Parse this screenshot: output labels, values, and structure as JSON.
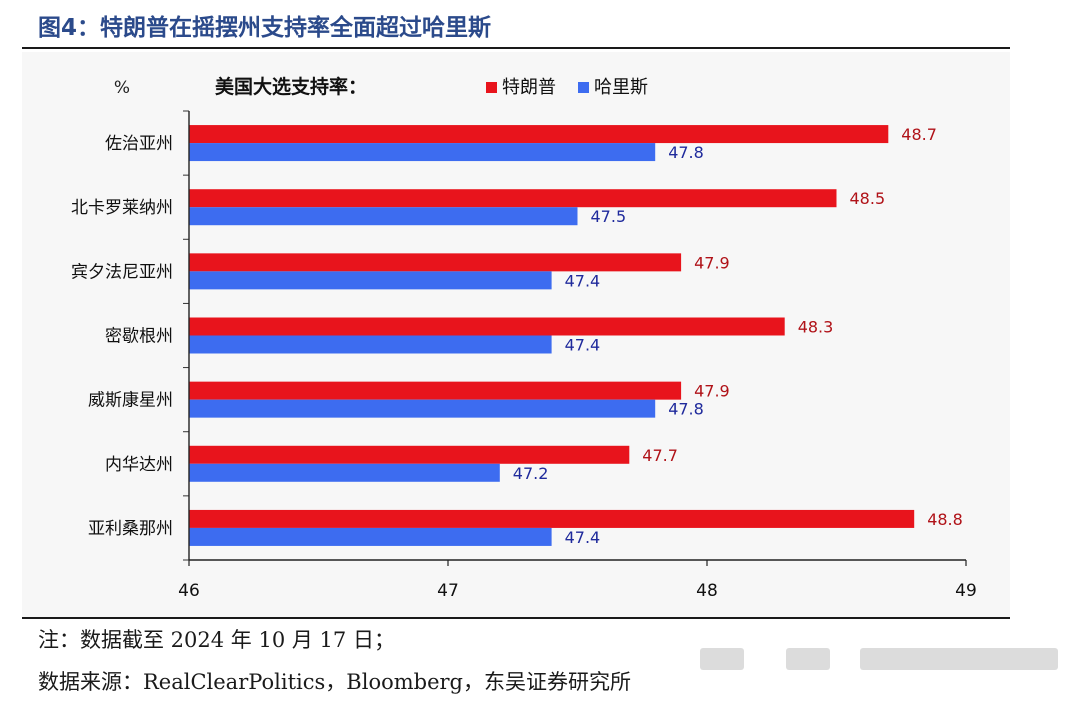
{
  "figure": {
    "title": "图4：特朗普在摇摆州支持率全面超过哈里斯",
    "note": "注：数据截至 2024 年 10 月 17 日；",
    "source": "数据来源：RealClearPolitics，Bloomberg，东吴证券研究所"
  },
  "chart_data": {
    "type": "bar",
    "orientation": "horizontal",
    "title": "美国大选支持率：",
    "unit_label": "%",
    "categories": [
      "佐治亚州",
      "北卡罗莱纳州",
      "宾夕法尼亚州",
      "密歇根州",
      "威斯康星州",
      "内华达州",
      "亚利桑那州"
    ],
    "series": [
      {
        "name": "特朗普",
        "color": "#e8141c",
        "label_color": "#b01218",
        "values": [
          48.7,
          48.5,
          47.9,
          48.3,
          47.9,
          47.7,
          48.8
        ]
      },
      {
        "name": "哈里斯",
        "color": "#3d6cf0",
        "label_color": "#1f2a9c",
        "values": [
          47.8,
          47.5,
          47.4,
          47.4,
          47.8,
          47.2,
          47.4
        ]
      }
    ],
    "xlim": [
      46,
      49
    ],
    "xticks": [
      46,
      47,
      48,
      49
    ],
    "grid": false,
    "legend_position": "top"
  }
}
